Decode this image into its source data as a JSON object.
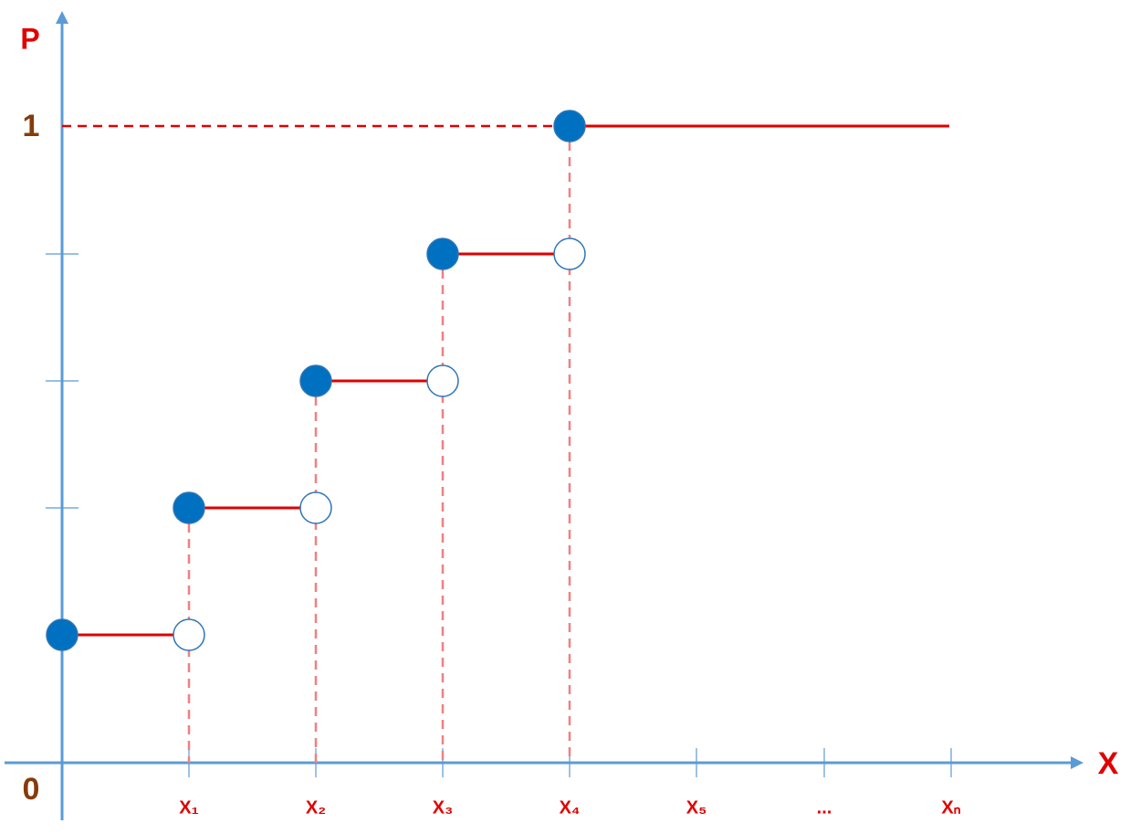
{
  "axes": {
    "y_label": "P",
    "x_label": "X",
    "y_one": "1",
    "origin": "0"
  },
  "x_labels": [
    "X₁",
    "X₂",
    "X₃",
    "X₄",
    "X₅",
    "...",
    "Xₙ"
  ]
}
